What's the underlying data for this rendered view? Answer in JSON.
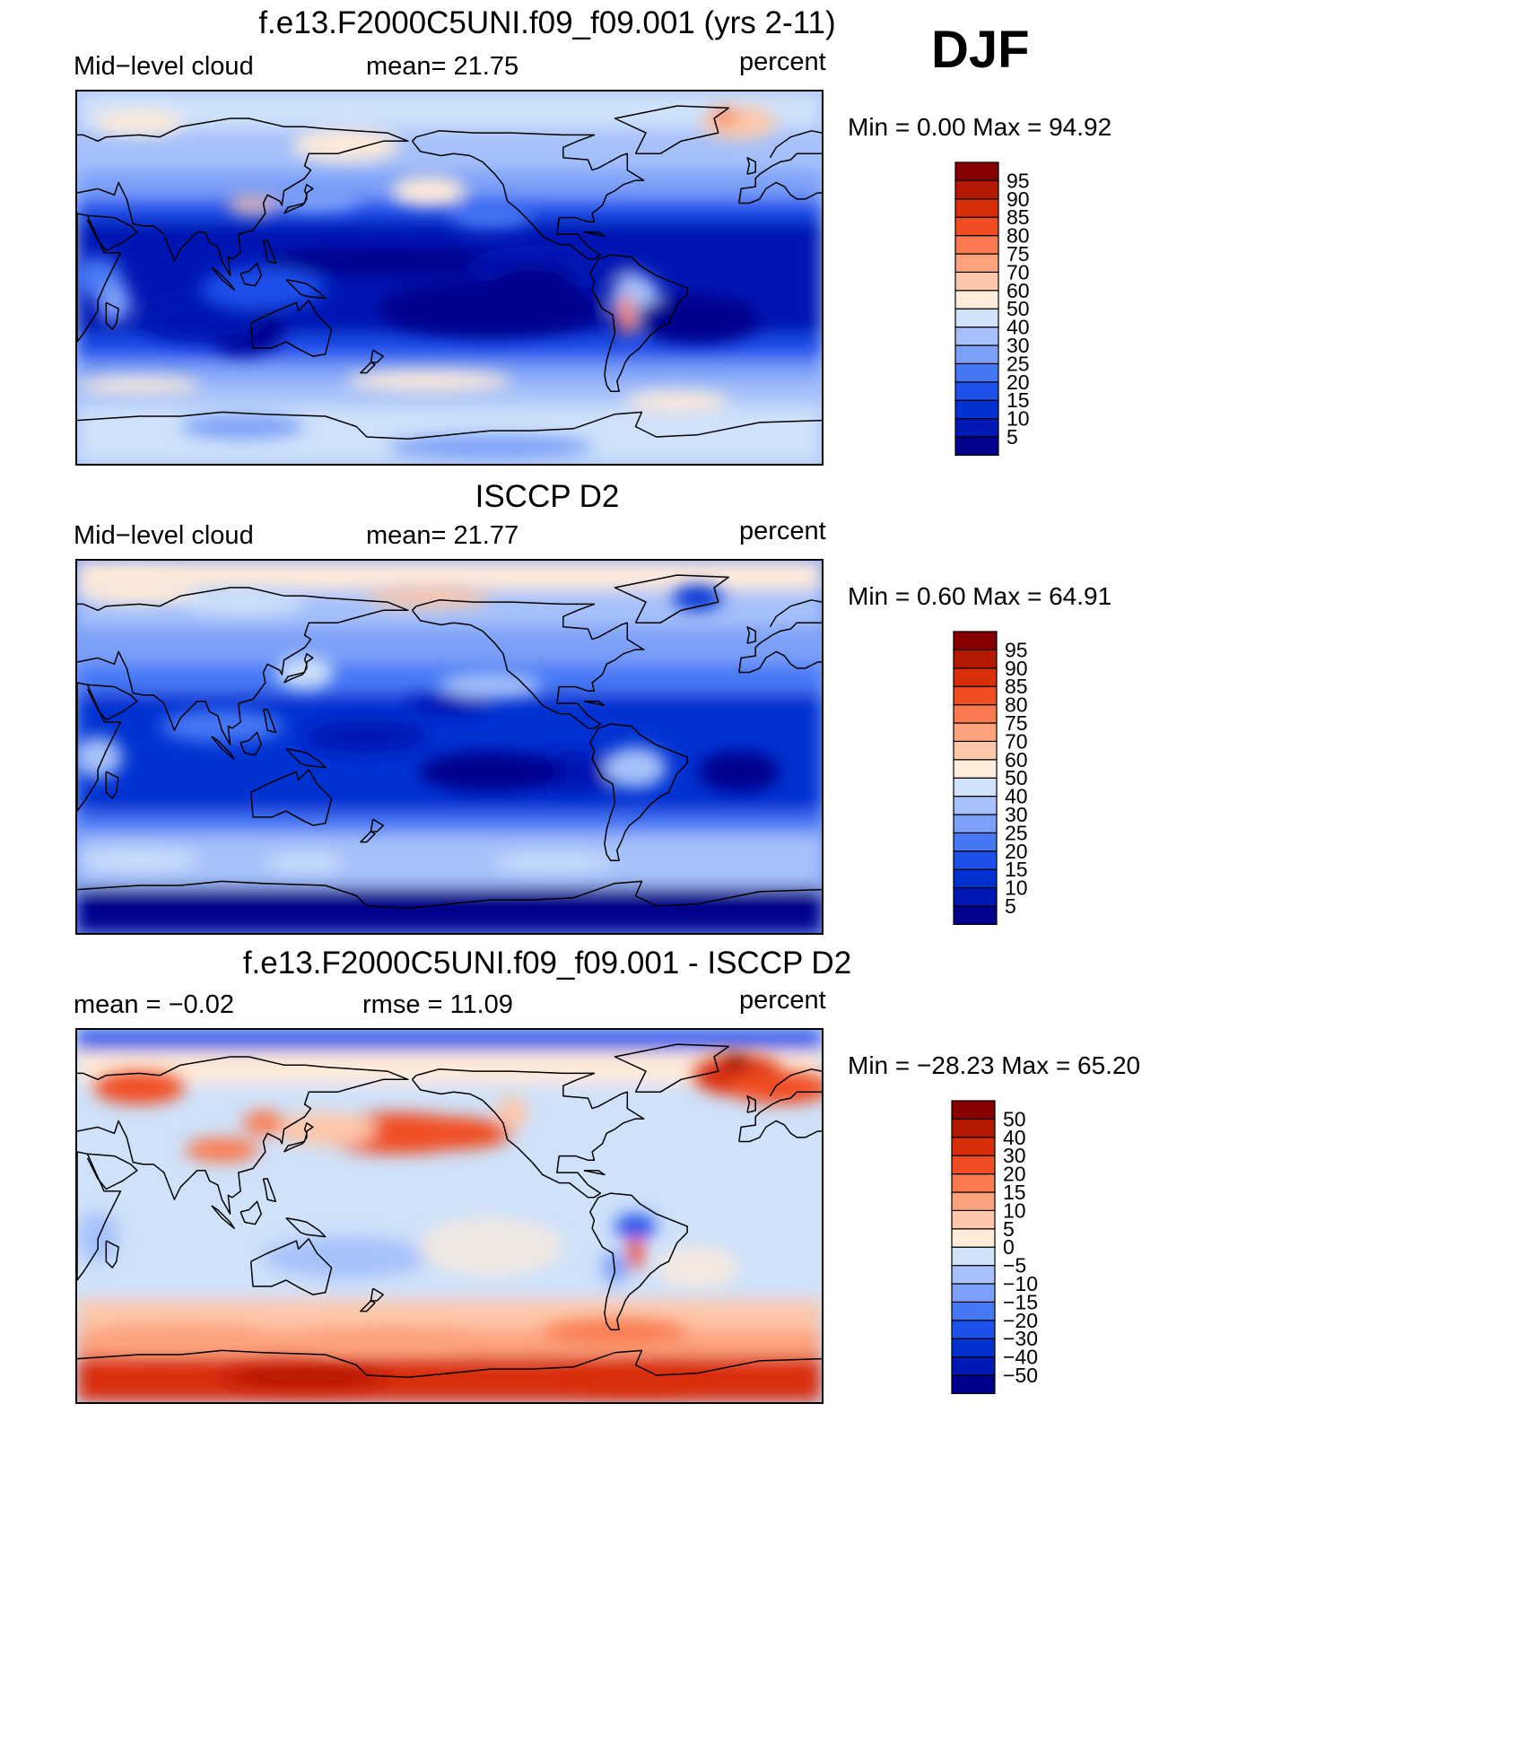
{
  "season": "DJF",
  "colors": {
    "abs": [
      "#00008c",
      "#0019b4",
      "#0032d2",
      "#1e50eb",
      "#4678f5",
      "#7ca0f8",
      "#a6c1fa",
      "#cfe2fa",
      "#ffebd9",
      "#fdc7a9",
      "#fca37e",
      "#f97a4f",
      "#f04e22",
      "#d92e0a",
      "#b31800",
      "#870000"
    ],
    "diff": [
      "#00008c",
      "#0019b4",
      "#0032d2",
      "#1e50eb",
      "#4678f5",
      "#7ca0f8",
      "#a6c1fa",
      "#cfe2fa",
      "#ffebd9",
      "#fdc7a9",
      "#fca37e",
      "#f97a4f",
      "#f04e22",
      "#d92e0a",
      "#b31800",
      "#870000"
    ]
  },
  "chart_data": [
    {
      "type": "heatmap",
      "title": "f.e13.F2000C5UNI.f09_f09.001 (yrs 2-11)",
      "left_label": "Mid−level cloud",
      "center_label": "mean=   21.75",
      "units": "percent",
      "minmax": "Min  =     0.00  Max  =    94.92",
      "colorbar_levels": [
        "5",
        "10",
        "15",
        "20",
        "25",
        "30",
        "40",
        "50",
        "60",
        "70",
        "75",
        "80",
        "85",
        "90",
        "95"
      ],
      "mean": 21.75,
      "min": 0.0,
      "max": 94.92
    },
    {
      "type": "heatmap",
      "title": "ISCCP D2",
      "left_label": "Mid−level cloud",
      "center_label": "mean=   21.77",
      "units": "percent",
      "minmax": "Min  =     0.60  Max  =    64.91",
      "colorbar_levels": [
        "5",
        "10",
        "15",
        "20",
        "25",
        "30",
        "40",
        "50",
        "60",
        "70",
        "75",
        "80",
        "85",
        "90",
        "95"
      ],
      "mean": 21.77,
      "min": 0.6,
      "max": 64.91
    },
    {
      "type": "heatmap",
      "title": "f.e13.F2000C5UNI.f09_f09.001 - ISCCP D2",
      "left_label": "mean  =    −0.02",
      "center_label": "rmse  =    11.09",
      "units": "percent",
      "minmax": "Min  = −28.23  Max  =    65.20",
      "colorbar_levels": [
        "−50",
        "−40",
        "−30",
        "−20",
        "−15",
        "−10",
        "−5",
        "0",
        "5",
        "10",
        "15",
        "20",
        "30",
        "40",
        "50"
      ],
      "mean": -0.02,
      "rmse": 11.09,
      "min": -28.23,
      "max": 65.2
    }
  ]
}
